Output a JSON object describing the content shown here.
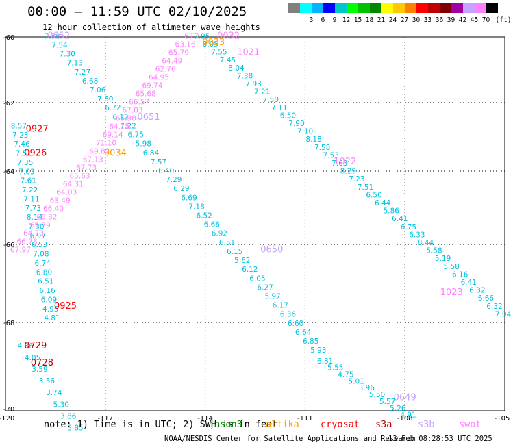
{
  "header": {
    "title": "00:00 – 11:59 UTC 02/10/2025",
    "subtitle": "12 hour collection of altimeter wave heights"
  },
  "colorbar": {
    "unit_label": "(ft)",
    "bins": [
      {
        "label": "",
        "color": "#808080"
      },
      {
        "label": "3",
        "color": "#00ffff"
      },
      {
        "label": "6",
        "color": "#00b4ff"
      },
      {
        "label": "9",
        "color": "#0000ff"
      },
      {
        "label": "12",
        "color": "#00c8c8"
      },
      {
        "label": "15",
        "color": "#00ff00"
      },
      {
        "label": "18",
        "color": "#00c000"
      },
      {
        "label": "21",
        "color": "#008800"
      },
      {
        "label": "24",
        "color": "#ffff00"
      },
      {
        "label": "27",
        "color": "#ffc800"
      },
      {
        "label": "30",
        "color": "#ff8000"
      },
      {
        "label": "33",
        "color": "#ff0000"
      },
      {
        "label": "36",
        "color": "#c00000"
      },
      {
        "label": "39",
        "color": "#800000"
      },
      {
        "label": "42",
        "color": "#a000a0"
      },
      {
        "label": "45",
        "color": "#c8a0ff"
      },
      {
        "label": "70",
        "color": "#ff80ff"
      },
      {
        "label": "",
        "color": "#000000"
      }
    ]
  },
  "axes": {
    "lon_labels": [
      "-120",
      "-117",
      "-114",
      "-111",
      "-108",
      "-105"
    ],
    "lat_labels": [
      "-60",
      "-62",
      "-64",
      "-66",
      "-68",
      "-70"
    ]
  },
  "legend": {
    "note": "note: 1) Time is in UTC; 2) SWH is in feet",
    "satellites": [
      {
        "name": "jason3",
        "color": "#008800"
      },
      {
        "name": "altika",
        "color": "#ffa000"
      },
      {
        "name": "cryosat",
        "color": "#ff0000"
      },
      {
        "name": "s3a",
        "color": "#c00000"
      },
      {
        "name": "s3b",
        "color": "#c8a0ff"
      },
      {
        "name": "swot",
        "color": "#ff80ff"
      }
    ]
  },
  "footer": {
    "agency": "NOAA/NESDIS Center for Satellite Applications and Research",
    "timestamp": "13 Feb 08:28:53 UTC 2025"
  },
  "colors": {
    "cyan": "#00c0e0",
    "pink": "#ff80ff",
    "swot_lav": "#c8a0ff",
    "red": "#ff0000",
    "orange": "#ffa000",
    "darkred": "#c00000"
  },
  "track_labels": [
    {
      "text": "0652",
      "lon": -118.4,
      "lat": -60.05,
      "color": "#c8a0ff"
    },
    {
      "text": "0651",
      "lon": -115.7,
      "lat": -62.5,
      "color": "#c8a0ff"
    },
    {
      "text": "0650",
      "lon": -112.0,
      "lat": -66.2,
      "color": "#c8a0ff"
    },
    {
      "text": "0649",
      "lon": -108.0,
      "lat": -69.8,
      "color": "#c8a0ff"
    },
    {
      "text": "1021",
      "lon": -112.7,
      "lat": -60.55,
      "color": "#ff80ff"
    },
    {
      "text": "1022",
      "lon": -109.8,
      "lat": -63.8,
      "color": "#ff80ff"
    },
    {
      "text": "1023",
      "lon": -106.6,
      "lat": -67.3,
      "color": "#ff80ff"
    },
    {
      "text": "0927",
      "lon": -119.05,
      "lat": -62.85,
      "color": "#ff0000"
    },
    {
      "text": "0926",
      "lon": -119.1,
      "lat": -63.55,
      "color": "#ff0000"
    },
    {
      "text": "0925",
      "lon": -118.2,
      "lat": -67.65,
      "color": "#ff0000"
    },
    {
      "text": "0034",
      "lon": -116.7,
      "lat": -63.55,
      "color": "#ffa000"
    },
    {
      "text": "0033",
      "lon": -113.75,
      "lat": -60.25,
      "color": "#ffa000"
    },
    {
      "text": "0032",
      "lon": -113.3,
      "lat": -60.05,
      "color": "#ff80ff"
    },
    {
      "text": "0729",
      "lon": -119.1,
      "lat": -68.6,
      "color": "#c00000"
    },
    {
      "text": "0728",
      "lon": -118.9,
      "lat": -69.0,
      "color": "#c00000"
    }
  ],
  "tracks": [
    {
      "id": "cyan-track-a",
      "color": "#00c0e0",
      "start": {
        "lon": -118.6,
        "lat": -60.05
      },
      "end": {
        "lon": -110.6,
        "lat": -68.7
      },
      "values": [
        "7.58",
        "7.54",
        "7.30",
        "7.13",
        "7.27",
        "6.68",
        "7.06",
        "7.60",
        "6.72",
        "6.12",
        "7.22",
        "6.75",
        "5.98",
        "6.84",
        "7.57",
        "6.40",
        "7.29",
        "6.29",
        "6.69",
        "7.18",
        "6.52",
        "6.66",
        "6.92",
        "6.51",
        "6.15",
        "5.62",
        "6.12",
        "6.05",
        "6.27",
        "5.97",
        "6.17",
        "6.36",
        "6.60",
        "6.64",
        "6.85",
        "5.93"
      ]
    },
    {
      "id": "cyan-track-a2",
      "color": "#00c0e0",
      "start": {
        "lon": -110.4,
        "lat": -68.95
      },
      "end": {
        "lon": -107.9,
        "lat": -70.2
      },
      "values": [
        "6.81",
        "5.55",
        "4.75",
        "5.01",
        "3.96",
        "5.50",
        "5.57",
        "5.26",
        "4.91"
      ]
    },
    {
      "id": "cyan-track-b",
      "color": "#00c0e0",
      "start": {
        "lon": -114.1,
        "lat": -60.05
      },
      "end": {
        "lon": -105.05,
        "lat": -67.85
      },
      "values": [
        "7.95",
        "8.05",
        "7.55",
        "7.45",
        "8.04",
        "7.38",
        "7.93",
        "7.21",
        "7.50",
        "7.11",
        "6.50",
        "7.90",
        "7.10",
        "8.18",
        "7.58",
        "7.53",
        "7.63",
        "8.29",
        "7.23",
        "7.51",
        "6.50",
        "6.44",
        "5.86",
        "6.41",
        "6.75",
        "6.33",
        "8.44",
        "5.58",
        "5.19",
        "5.58",
        "6.16",
        "6.41",
        "6.32",
        "6.66",
        "6.32",
        "7.04"
      ]
    },
    {
      "id": "cyan-track-c",
      "color": "#00c0e0",
      "start": {
        "lon": -119.6,
        "lat": -62.75
      },
      "end": {
        "lon": -118.6,
        "lat": -67.95
      },
      "values": [
        "8.57",
        "7.23",
        "7.46",
        "7.51",
        "7.35",
        "7.03",
        "7.61",
        "7.22",
        "7.11",
        "7.73",
        "8.14",
        "7.30",
        "6.97",
        "6.53",
        "7.08",
        "6.74",
        "6.80",
        "6.51",
        "6.16",
        "6.09",
        "4.95",
        "4.81"
      ]
    },
    {
      "id": "cyan-track-d",
      "color": "#00c0e0",
      "start": {
        "lon": -119.4,
        "lat": -68.6
      },
      "end": {
        "lon": -117.9,
        "lat": -70.5
      },
      "values": [
        "4.86",
        "4.05",
        "3.59",
        "3.56",
        "3.74",
        "5.30",
        "3.86",
        "3.85"
      ]
    },
    {
      "id": "swot-track",
      "color": "#ff80ff",
      "start": {
        "lon": -114.4,
        "lat": -60.05
      },
      "end": {
        "lon": -119.55,
        "lat": -66.2
      },
      "values": [
        "67.?",
        "63.16",
        "65.79",
        "64.49",
        "62.76",
        "64.95",
        "69.74",
        "65.68",
        "66.57",
        "67.03",
        "65.98",
        "64.15",
        "69.14",
        "71.10",
        "69.82",
        "67.13",
        "67.73",
        "65.63",
        "64.31",
        "64.03",
        "63.49",
        "66.40",
        "66.82",
        "65.79",
        "64.73",
        "66.78",
        "67.97"
      ]
    }
  ]
}
